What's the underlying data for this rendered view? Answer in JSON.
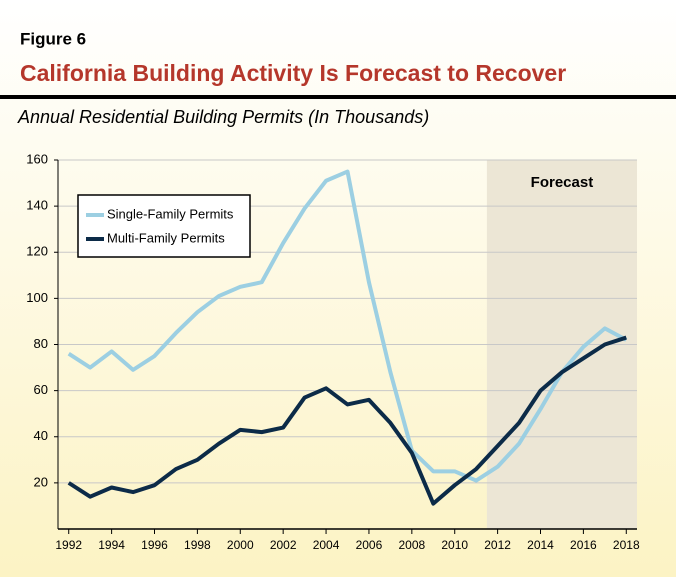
{
  "chart_data": {
    "type": "line",
    "figure_label": "Figure 6",
    "title": "California Building Activity Is Forecast to Recover",
    "subtitle": "Annual Residential Building Permits (In Thousands)",
    "x": [
      1992,
      1993,
      1994,
      1995,
      1996,
      1997,
      1998,
      1999,
      2000,
      2001,
      2002,
      2003,
      2004,
      2005,
      2006,
      2007,
      2008,
      2009,
      2010,
      2011,
      2012,
      2013,
      2014,
      2015,
      2016,
      2017,
      2018
    ],
    "series": [
      {
        "name": "Single-Family Permits",
        "color": "#9ccfe2",
        "values": [
          76,
          70,
          77,
          69,
          75,
          85,
          94,
          101,
          105,
          107,
          124,
          139,
          151,
          155,
          107,
          68,
          34,
          25,
          25,
          21,
          27,
          37,
          52,
          68,
          79,
          87,
          82
        ]
      },
      {
        "name": "Multi-Family Permits",
        "color": "#0c2b48",
        "values": [
          20,
          14,
          18,
          16,
          19,
          26,
          30,
          37,
          43,
          42,
          44,
          57,
          61,
          54,
          56,
          46,
          33,
          11,
          19,
          26,
          36,
          46,
          60,
          68,
          74,
          80,
          83
        ]
      }
    ],
    "xlim": [
      1991.5,
      2018.5
    ],
    "xticks": [
      1992,
      1994,
      1996,
      1998,
      2000,
      2002,
      2004,
      2006,
      2008,
      2010,
      2012,
      2014,
      2016,
      2018
    ],
    "ylim": [
      0,
      160
    ],
    "yticks": [
      20,
      40,
      60,
      80,
      100,
      120,
      140,
      160
    ],
    "grid": true,
    "legend": "upper left",
    "shaded_region": {
      "label": "Forecast",
      "from": 2011.5,
      "to": 2018.5,
      "color": "#ece6d5"
    }
  }
}
